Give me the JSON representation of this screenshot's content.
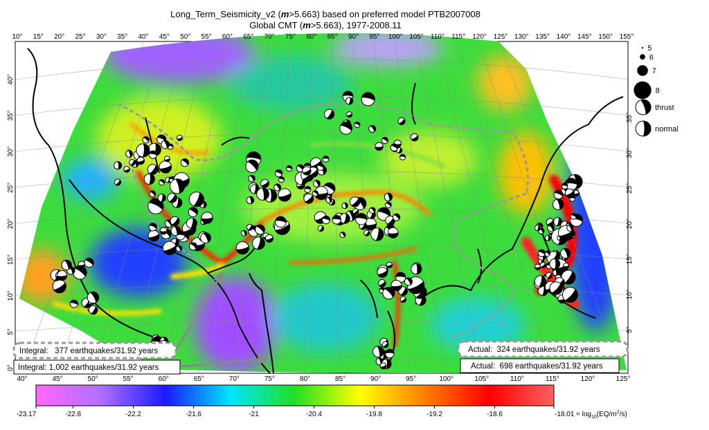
{
  "title": {
    "line1": [
      "Long_Term_Seismicity_v2 (",
      "m",
      ">5.663) based on preferred model PTB2007008"
    ],
    "line2": [
      "Global CMT (",
      "m",
      ">5.663), 1977-2008.11"
    ]
  },
  "map": {
    "top_longitudes": [
      "10°",
      "15°",
      "20°",
      "25°",
      "30°",
      "35°",
      "40°",
      "45°",
      "50°",
      "55°",
      "60°",
      "65°",
      "70°",
      "75°",
      "80°",
      "85°",
      "90°",
      "95°",
      "100°",
      "105°",
      "110°",
      "115°",
      "120°",
      "125°",
      "130°",
      "135°",
      "140°",
      "145°",
      "150°",
      "155°"
    ],
    "bottom_longitudes": [
      "40°",
      "45°",
      "50°",
      "55°",
      "60°",
      "65°",
      "70°",
      "75°",
      "80°",
      "85°",
      "90°",
      "95°",
      "100°",
      "105°",
      "110°",
      "115°",
      "120°",
      "125°"
    ],
    "left_latitudes": [
      "40°",
      "35°",
      "30°",
      "25°",
      "20°",
      "15°",
      "10°",
      "5°",
      "0°"
    ],
    "right_latitudes": [
      "35°",
      "30°",
      "25°",
      "20°",
      "15°",
      "10°",
      "5°"
    ]
  },
  "legend": {
    "magnitudes": [
      5,
      6,
      7,
      8
    ],
    "mechanisms": [
      "thrust",
      "normal"
    ]
  },
  "boxes": {
    "integral_left": "Integral:   377 earthquakes/31.92 years",
    "integral_total": "Integral: 1,002 earthquakes/31.92 years",
    "actual_left": "Actual:  324 earthquakes/31.92 years",
    "actual_total": "Actual:  698 earthquakes/31.92 years"
  },
  "colorbar": {
    "range": [
      -23.17,
      -18.01
    ],
    "ticks": [
      -23.17,
      -22.8,
      -22.2,
      -21.6,
      -21,
      -20.4,
      -19.8,
      -19.2,
      -18.6,
      -18.01
    ],
    "colors": [
      "#ff66ff",
      "#b070ff",
      "#1a1aff",
      "#00e5ff",
      "#20e020",
      "#ffff00",
      "#ff8000",
      "#ff0000",
      "#ff6060"
    ],
    "unit": [
      "= log",
      "10",
      "(EQ/m",
      "2",
      "/s)"
    ]
  }
}
